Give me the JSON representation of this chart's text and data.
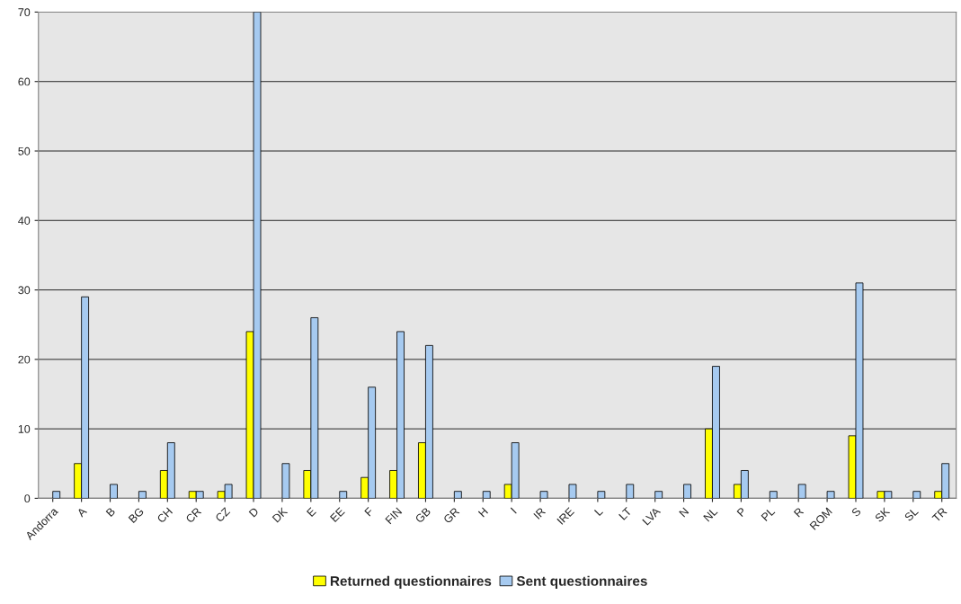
{
  "chart_data": {
    "type": "bar",
    "categories": [
      "Andorra",
      "A",
      "B",
      "BG",
      "CH",
      "CR",
      "CZ",
      "D",
      "DK",
      "E",
      "EE",
      "F",
      "FIN",
      "GB",
      "GR",
      "H",
      "I",
      "IR",
      "IRE",
      "L",
      "LT",
      "LVA",
      "N",
      "NL",
      "P",
      "PL",
      "R",
      "ROM",
      "S",
      "SK",
      "SL",
      "TR"
    ],
    "series": [
      {
        "name": "Returned questionnaires",
        "color": "#ffff00",
        "values": [
          0,
          5,
          0,
          0,
          4,
          1,
          1,
          24,
          0,
          4,
          0,
          3,
          4,
          8,
          0,
          0,
          2,
          0,
          0,
          0,
          0,
          0,
          0,
          10,
          2,
          0,
          0,
          0,
          9,
          1,
          0,
          1
        ]
      },
      {
        "name": "Sent questionnaires",
        "color": "#a6caf0",
        "values": [
          1,
          29,
          2,
          1,
          8,
          1,
          2,
          70,
          5,
          26,
          1,
          16,
          24,
          22,
          1,
          1,
          8,
          1,
          2,
          1,
          2,
          1,
          2,
          19,
          4,
          1,
          2,
          1,
          31,
          1,
          1,
          5
        ]
      }
    ],
    "ylim": [
      0,
      70
    ],
    "yticks": [
      0,
      10,
      20,
      30,
      40,
      50,
      60,
      70
    ],
    "grid": "y",
    "legend": "bottom"
  }
}
